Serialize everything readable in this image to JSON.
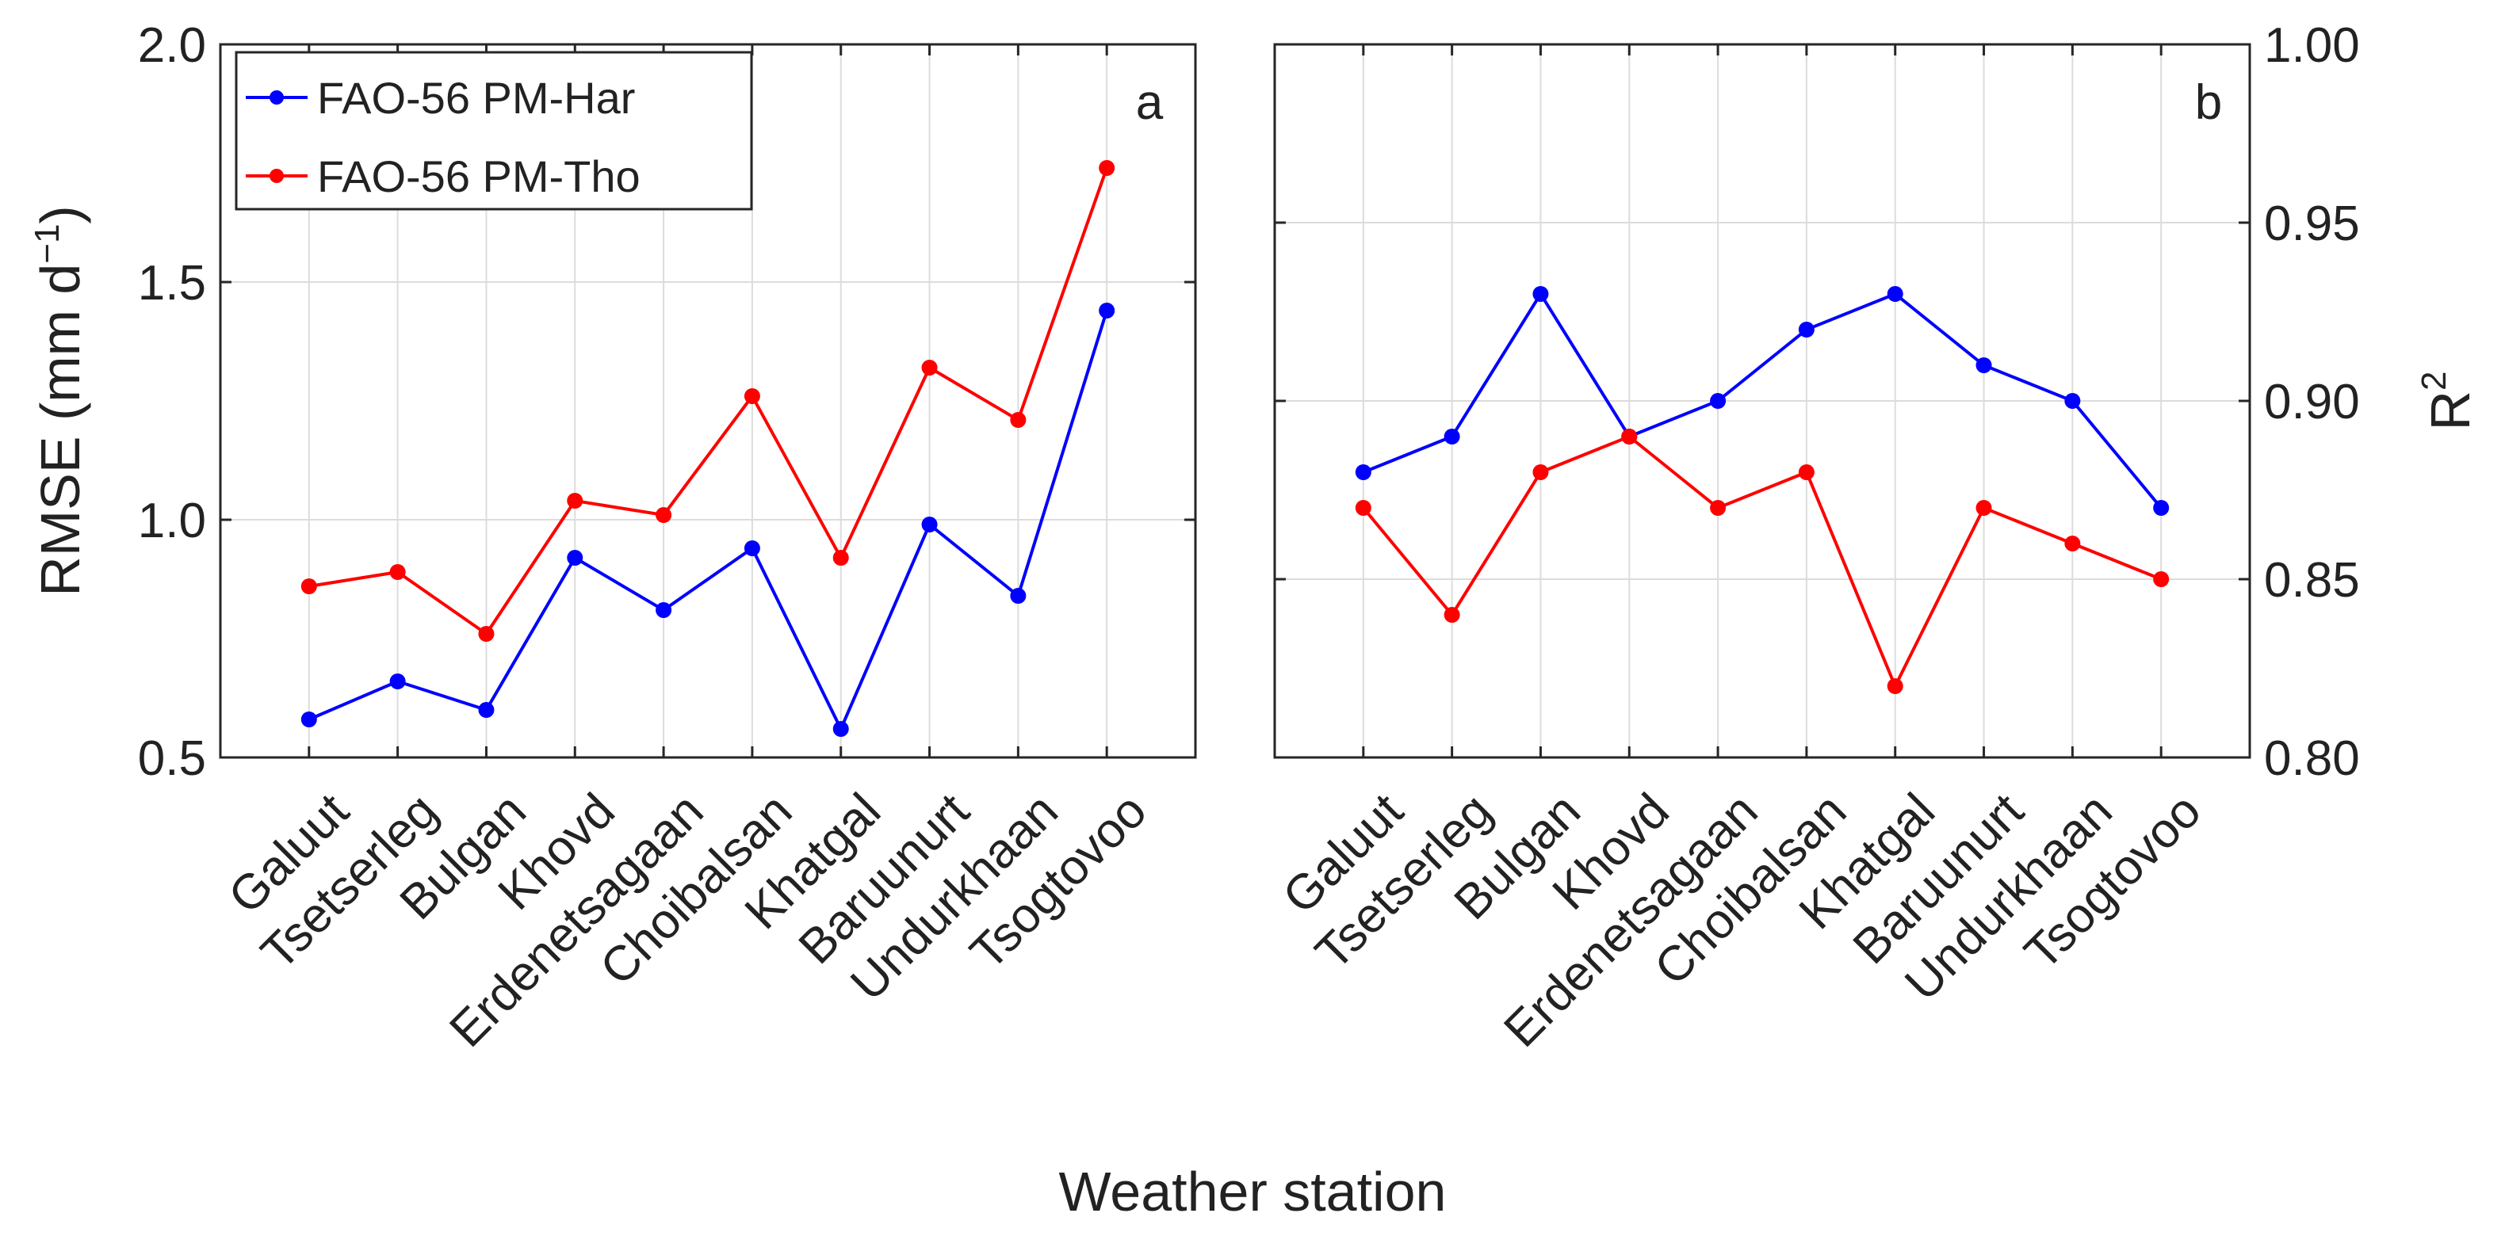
{
  "chart_data": [
    {
      "id": "a",
      "type": "line",
      "panel_label": "a",
      "categories": [
        "Galuut",
        "Tsetserleg",
        "Bulgan",
        "Khovd",
        "Erdenetsagaan",
        "Choibalsan",
        "Khatgal",
        "Baruunurt",
        "Undurkhaan",
        "Tsogtovoo"
      ],
      "series": [
        {
          "name": "FAO-56 PM-Har",
          "color": "#0000ff",
          "values": [
            0.58,
            0.66,
            0.6,
            0.92,
            0.81,
            0.94,
            0.56,
            0.99,
            0.84,
            1.44
          ]
        },
        {
          "name": "FAO-56 PM-Tho",
          "color": "#ff0000",
          "values": [
            0.86,
            0.89,
            0.76,
            1.04,
            1.01,
            1.26,
            0.92,
            1.32,
            1.21,
            1.74
          ]
        }
      ],
      "ylabel": "RMSE (mm d",
      "ylabel_sup": "−1",
      "ylabel_close": ")",
      "ylim": [
        0.5,
        2.0
      ],
      "yticks": [
        "0.5",
        "1.0",
        "1.5",
        "2.0"
      ],
      "ytick_values": [
        0.5,
        1.0,
        1.5,
        2.0
      ],
      "legend_position": "top-left",
      "grid": true
    },
    {
      "id": "b",
      "type": "line",
      "panel_label": "b",
      "categories": [
        "Galuut",
        "Tsetserleg",
        "Bulgan",
        "Khovd",
        "Erdenetsagaan",
        "Choibalsan",
        "Khatgal",
        "Baruunurt",
        "Undurkhaan",
        "Tsogtovoo"
      ],
      "series": [
        {
          "name": "FAO-56 PM-Har",
          "color": "#0000ff",
          "values": [
            0.88,
            0.89,
            0.93,
            0.89,
            0.9,
            0.92,
            0.93,
            0.91,
            0.9,
            0.87
          ]
        },
        {
          "name": "FAO-56 PM-Tho",
          "color": "#ff0000",
          "values": [
            0.87,
            0.84,
            0.88,
            0.89,
            0.87,
            0.88,
            0.82,
            0.87,
            0.86,
            0.85
          ]
        }
      ],
      "ylabel": "R",
      "ylabel_sup": "2",
      "ylim": [
        0.8,
        1.0
      ],
      "yticks": [
        "0.80",
        "0.85",
        "0.90",
        "0.95",
        "1.00"
      ],
      "ytick_values": [
        0.8,
        0.85,
        0.9,
        0.95,
        1.0
      ],
      "grid": true
    }
  ],
  "xlabel": "Weather station"
}
